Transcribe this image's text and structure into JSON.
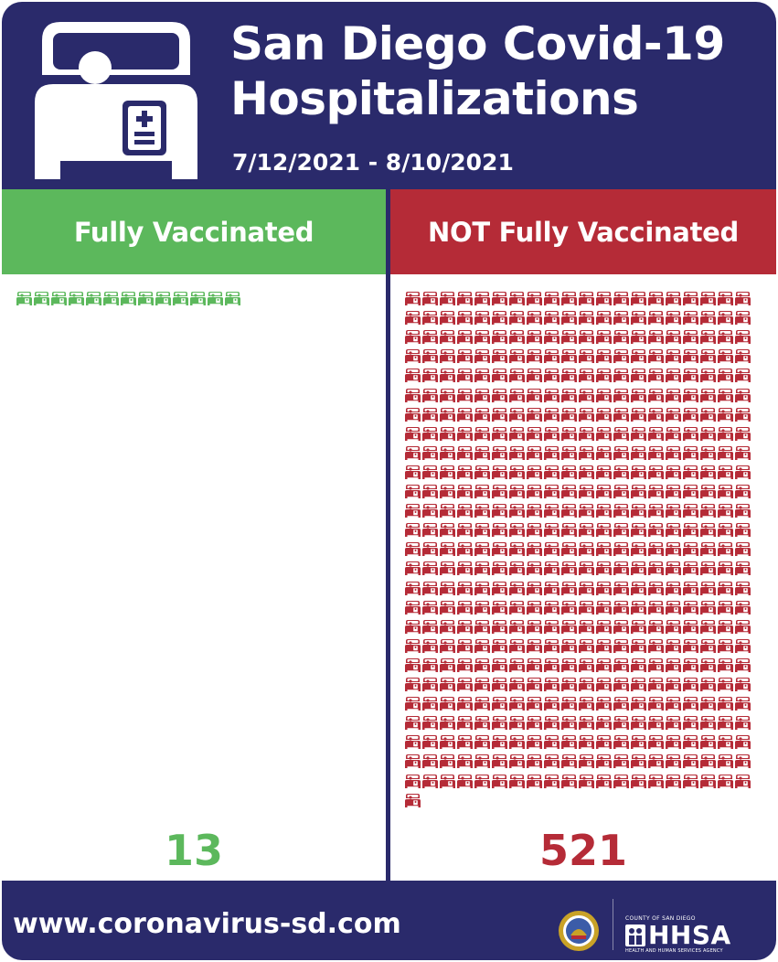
{
  "header": {
    "title_line1": "San Diego Covid-19",
    "title_line2": "Hospitalizations",
    "date_range": "7/12/2021 - 8/10/2021",
    "icon": "hospital-bed-icon"
  },
  "columns": {
    "left_label": "Fully Vaccinated",
    "right_label": "NOT Fully Vaccinated"
  },
  "colors": {
    "navy": "#2a2a6b",
    "green": "#5cb85c",
    "red": "#b52b37"
  },
  "chart_data": {
    "type": "pictograph",
    "title": "San Diego Covid-19 Hospitalizations",
    "subtitle": "7/12/2021 - 8/10/2021",
    "categories": [
      "Fully Vaccinated",
      "NOT Fully Vaccinated"
    ],
    "values": [
      13,
      521
    ],
    "value_labels": [
      "13",
      "521"
    ],
    "unit_icon": "hospital-bed-icon",
    "icons_per_row": [
      13,
      20
    ]
  },
  "footer": {
    "url": "www.coronavirus-sd.com",
    "agency_top": "COUNTY OF SAN DIEGO",
    "agency_brand": "HHSA",
    "agency_sub": "HEALTH AND HUMAN SERVICES AGENCY",
    "seal_icon": "county-seal-icon"
  }
}
